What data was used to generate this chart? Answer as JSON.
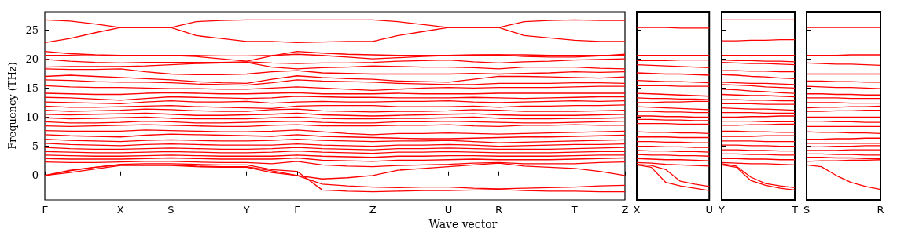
{
  "chart_data": [
    {
      "type": "line",
      "xlabel": "Wave vector",
      "ylabel": "Frequency (THz)",
      "color": "#ff0000",
      "line_style": "solid",
      "marker": "none",
      "categories": [
        "Γ",
        null,
        null,
        "X",
        null,
        "S",
        null,
        null,
        "Y",
        null,
        "Γ",
        null,
        null,
        "Z",
        null,
        null,
        "U",
        null,
        "R",
        null,
        null,
        "T",
        null,
        "Z"
      ],
      "ylim": [
        -4.2,
        28.1
      ],
      "yticks": [
        0,
        5,
        10,
        15,
        20,
        25
      ],
      "ref_lines": [
        {
          "axis": "y",
          "value": 0,
          "color": "#8080ff",
          "line_style": "dotted"
        }
      ],
      "series": [
        {
          "values": [
            26.7,
            26.5,
            26.0,
            25.4,
            25.4,
            25.4,
            26.4,
            26.6,
            26.7,
            26.7,
            26.7,
            26.7,
            26.7,
            26.7,
            26.4,
            25.9,
            25.4,
            25.4,
            25.4,
            26.4,
            26.6,
            26.7,
            26.6,
            26.6
          ]
        },
        {
          "values": [
            22.8,
            23.5,
            24.5,
            25.4,
            25.4,
            25.4,
            24.0,
            23.5,
            23.0,
            23.0,
            22.8,
            22.9,
            23.0,
            23.0,
            24.0,
            24.7,
            25.4,
            25.4,
            25.4,
            24.0,
            23.6,
            23.2,
            23.0,
            23.0
          ]
        },
        {
          "values": [
            21.3,
            20.9,
            20.7,
            20.6,
            20.6,
            20.6,
            20.4,
            20.0,
            19.6,
            20.5,
            21.3,
            21.0,
            20.8,
            20.7,
            20.6,
            20.6,
            20.6,
            20.6,
            20.7,
            20.4,
            20.3,
            20.3,
            20.5,
            20.8
          ]
        },
        {
          "values": [
            20.6,
            20.6,
            20.5,
            20.5,
            20.5,
            20.6,
            20.6,
            20.5,
            20.5,
            20.6,
            20.8,
            20.6,
            20.3,
            20.0,
            20.2,
            20.4,
            20.6,
            20.7,
            20.7,
            20.7,
            20.6,
            20.6,
            20.6,
            20.6
          ]
        },
        {
          "values": [
            19.9,
            19.6,
            19.4,
            19.3,
            19.4,
            19.4,
            19.4,
            19.4,
            19.5,
            19.3,
            19.2,
            19.3,
            19.3,
            19.4,
            19.6,
            19.7,
            19.8,
            19.5,
            19.3,
            19.5,
            19.6,
            19.8,
            19.9,
            20.0
          ]
        },
        {
          "values": [
            18.6,
            18.7,
            18.7,
            18.7,
            18.8,
            19.0,
            19.2,
            19.3,
            19.4,
            18.6,
            18.3,
            18.5,
            18.6,
            18.8,
            18.7,
            18.6,
            18.6,
            18.5,
            18.3,
            18.6,
            18.6,
            18.6,
            18.4,
            18.3
          ]
        },
        {
          "values": [
            18.3,
            18.2,
            18.2,
            18.3,
            17.8,
            17.4,
            17.3,
            17.3,
            17.4,
            17.8,
            18.0,
            17.6,
            17.5,
            17.4,
            17.4,
            17.4,
            17.4,
            17.5,
            17.4,
            17.5,
            17.6,
            17.8,
            17.7,
            17.8
          ]
        },
        {
          "values": [
            17.0,
            17.2,
            17.0,
            16.8,
            16.6,
            16.4,
            16.1,
            15.9,
            15.8,
            16.5,
            17.1,
            16.8,
            16.6,
            16.5,
            16.2,
            16.1,
            16.0,
            16.5,
            17.0,
            17.0,
            16.9,
            16.8,
            16.7,
            16.9
          ]
        },
        {
          "values": [
            16.4,
            16.3,
            16.1,
            16.0,
            16.0,
            15.9,
            15.7,
            15.6,
            15.5,
            15.9,
            16.4,
            16.2,
            16.1,
            16.0,
            15.8,
            15.7,
            15.6,
            15.6,
            15.8,
            15.8,
            15.8,
            15.9,
            15.9,
            15.8
          ]
        },
        {
          "values": [
            15.4,
            15.2,
            15.1,
            15.1,
            15.0,
            14.9,
            14.9,
            14.8,
            14.8,
            15.0,
            15.2,
            15.0,
            14.8,
            14.6,
            14.8,
            15.0,
            15.1,
            15.0,
            15.1,
            15.1,
            15.1,
            15.2,
            15.3,
            15.3
          ]
        },
        {
          "values": [
            14.1,
            14.0,
            13.9,
            13.9,
            14.1,
            14.2,
            14.1,
            14.0,
            14.0,
            14.1,
            14.2,
            14.0,
            14.0,
            14.0,
            14.1,
            14.0,
            14.0,
            14.0,
            14.1,
            14.1,
            14.1,
            14.1,
            14.1,
            14.1
          ]
        },
        {
          "values": [
            13.4,
            13.3,
            13.1,
            12.9,
            13.2,
            13.5,
            13.4,
            13.3,
            13.2,
            13.3,
            13.6,
            13.5,
            13.4,
            13.4,
            13.3,
            13.3,
            13.3,
            13.4,
            13.3,
            13.2,
            13.3,
            13.4,
            13.5,
            13.5
          ]
        },
        {
          "values": [
            12.6,
            12.5,
            12.4,
            12.3,
            12.6,
            12.8,
            12.6,
            12.6,
            12.7,
            12.4,
            12.6,
            12.7,
            12.6,
            12.6,
            12.7,
            12.7,
            12.8,
            12.6,
            12.5,
            12.6,
            12.7,
            12.8,
            12.7,
            12.8
          ]
        },
        {
          "values": [
            11.9,
            11.7,
            11.7,
            11.8,
            11.9,
            12.0,
            11.8,
            11.7,
            11.6,
            11.5,
            11.9,
            12.0,
            12.0,
            12.0,
            11.8,
            11.8,
            11.8,
            11.9,
            11.7,
            11.9,
            11.9,
            12.0,
            12.0,
            12.1
          ]
        },
        {
          "values": [
            11.2,
            11.0,
            11.1,
            11.2,
            11.4,
            11.3,
            11.1,
            11.0,
            11.0,
            11.3,
            11.4,
            11.1,
            11.0,
            10.9,
            11.0,
            11.0,
            11.1,
            11.3,
            11.2,
            11.0,
            11.0,
            11.0,
            11.1,
            11.2
          ]
        },
        {
          "values": [
            10.5,
            10.4,
            10.5,
            10.6,
            10.7,
            10.5,
            10.3,
            10.3,
            10.4,
            10.5,
            10.7,
            10.4,
            10.3,
            10.2,
            10.3,
            10.4,
            10.5,
            10.6,
            10.4,
            10.3,
            10.3,
            10.3,
            10.4,
            10.5
          ]
        },
        {
          "values": [
            9.9,
            9.7,
            9.8,
            9.9,
            10.0,
            9.8,
            9.7,
            9.7,
            9.7,
            9.9,
            10.0,
            9.8,
            9.7,
            9.7,
            9.8,
            9.8,
            9.9,
            10.0,
            9.8,
            9.7,
            9.7,
            9.8,
            9.8,
            9.9
          ]
        },
        {
          "values": [
            9.2,
            9.0,
            9.0,
            9.1,
            9.3,
            9.2,
            9.0,
            9.0,
            9.1,
            9.2,
            9.3,
            9.1,
            9.0,
            9.0,
            9.2,
            9.2,
            9.3,
            9.2,
            9.1,
            9.0,
            9.0,
            9.1,
            9.2,
            9.3
          ]
        },
        {
          "values": [
            8.5,
            8.4,
            8.5,
            8.6,
            8.7,
            8.6,
            8.5,
            8.4,
            8.4,
            8.6,
            8.7,
            8.5,
            8.5,
            8.5,
            8.6,
            8.6,
            8.7,
            8.5,
            8.4,
            8.6,
            8.6,
            8.7,
            8.6,
            8.6
          ]
        },
        {
          "values": [
            7.7,
            7.6,
            7.6,
            7.6,
            7.8,
            7.7,
            7.6,
            7.5,
            7.5,
            7.6,
            7.8,
            7.5,
            7.2,
            7.0,
            7.2,
            7.2,
            7.3,
            7.2,
            7.1,
            7.2,
            7.3,
            7.4,
            7.5,
            7.6
          ]
        },
        {
          "values": [
            7.0,
            6.8,
            6.7,
            6.6,
            6.9,
            7.1,
            7.0,
            6.9,
            6.8,
            6.7,
            7.0,
            6.7,
            6.6,
            6.5,
            6.4,
            6.3,
            6.3,
            6.4,
            6.5,
            6.6,
            6.6,
            6.7,
            6.8,
            6.9
          ]
        },
        {
          "values": [
            6.2,
            6.0,
            5.9,
            5.8,
            6.0,
            6.1,
            6.0,
            5.9,
            5.9,
            6.0,
            6.2,
            6.0,
            5.9,
            5.8,
            5.9,
            5.9,
            6.0,
            5.8,
            5.6,
            5.7,
            5.8,
            5.9,
            6.0,
            6.1
          ]
        },
        {
          "values": [
            5.5,
            5.3,
            5.2,
            5.1,
            5.3,
            5.4,
            5.3,
            5.2,
            5.2,
            5.2,
            5.4,
            5.2,
            5.1,
            5.0,
            5.2,
            5.2,
            5.3,
            5.2,
            5.0,
            5.1,
            5.2,
            5.3,
            5.3,
            5.4
          ]
        },
        {
          "values": [
            4.8,
            4.6,
            4.5,
            4.5,
            4.6,
            4.7,
            4.6,
            4.5,
            4.5,
            4.6,
            4.8,
            4.6,
            4.5,
            4.4,
            4.6,
            4.6,
            4.7,
            4.6,
            4.5,
            4.5,
            4.5,
            4.6,
            4.7,
            4.8
          ]
        },
        {
          "values": [
            4.1,
            4.0,
            3.9,
            3.9,
            4.0,
            4.1,
            4.0,
            3.9,
            3.9,
            4.0,
            4.2,
            4.0,
            3.9,
            3.8,
            4.0,
            4.0,
            4.1,
            4.0,
            3.9,
            3.9,
            3.9,
            4.0,
            4.1,
            4.1
          ]
        },
        {
          "values": [
            3.5,
            3.4,
            3.3,
            3.3,
            3.4,
            3.5,
            3.4,
            3.3,
            3.3,
            3.3,
            3.5,
            3.3,
            3.2,
            3.1,
            3.3,
            3.3,
            3.4,
            3.4,
            3.3,
            3.3,
            3.3,
            3.4,
            3.5,
            3.5
          ]
        },
        {
          "values": [
            2.9,
            2.8,
            2.8,
            2.8,
            2.9,
            3.0,
            2.9,
            2.8,
            2.8,
            2.8,
            3.0,
            2.6,
            2.5,
            2.4,
            2.6,
            2.6,
            2.7,
            2.8,
            2.7,
            2.7,
            2.7,
            2.8,
            2.9,
            3.0
          ]
        },
        {
          "values": [
            2.3,
            2.2,
            2.2,
            2.3,
            2.4,
            2.4,
            2.3,
            2.2,
            2.2,
            2.0,
            2.4,
            1.8,
            1.6,
            1.5,
            1.7,
            1.8,
            1.9,
            2.1,
            2.2,
            2.0,
            2.0,
            2.0,
            2.2,
            2.3
          ]
        },
        {
          "values": [
            0,
            0.9,
            1.4,
            1.8,
            1.8,
            1.8,
            1.6,
            1.5,
            1.5,
            0.8,
            0,
            -0.6,
            -0.4,
            0,
            0.9,
            1.2,
            1.5,
            1.8,
            2.1,
            1.6,
            1.4,
            1.2,
            0.7,
            0
          ]
        },
        {
          "values": [
            0,
            0.5,
            1.1,
            1.7,
            1.7,
            1.7,
            1.5,
            1.4,
            1.4,
            0.5,
            0,
            -1.5,
            -1.8,
            -2.0,
            -2.1,
            -2.0,
            -2.0,
            -2.2,
            -2.3,
            -2.2,
            -2.1,
            -2.0,
            -1.8,
            -1.7
          ]
        },
        {
          "values": [
            0,
            0.8,
            1.4,
            1.9,
            2.0,
            2.0,
            1.9,
            1.8,
            1.8,
            1.0,
            0.7,
            -2.5,
            -2.7,
            -2.8,
            -2.7,
            -2.6,
            -2.6,
            -2.5,
            -2.4,
            -2.6,
            -2.7,
            -2.7,
            -2.8,
            -2.8
          ]
        }
      ]
    },
    {
      "type": "line",
      "color": "#ff0000",
      "line_style": "solid",
      "marker": "none",
      "tick_labels": "x",
      "categories": [
        "X",
        null,
        null,
        null,
        null,
        "U"
      ],
      "ylim": [
        -4.2,
        28.1
      ],
      "yticks": [
        0,
        5,
        10,
        15,
        20,
        25
      ],
      "ref_lines": [
        {
          "axis": "y",
          "value": 0,
          "color": "#8080ff",
          "line_style": "dotted"
        }
      ],
      "series": [
        {
          "values": [
            25.4,
            25.4,
            25.4,
            25.3,
            25.3,
            25.3
          ]
        },
        {
          "values": [
            20.6,
            20.6,
            20.6,
            20.6,
            20.6,
            20.6
          ]
        },
        {
          "values": [
            19.7,
            19.7,
            19.7,
            19.8,
            19.8,
            19.8
          ]
        },
        {
          "values": [
            19.0,
            18.9,
            18.8,
            18.7,
            18.6,
            18.5
          ]
        },
        {
          "values": [
            17.6,
            17.5,
            17.4,
            17.4,
            17.3,
            17.2
          ]
        },
        {
          "values": [
            16.3,
            16.2,
            16.1,
            16.1,
            16.0,
            15.9
          ]
        },
        {
          "values": [
            15.4,
            15.4,
            15.4,
            15.3,
            15.3,
            15.3
          ]
        },
        {
          "values": [
            14.1,
            14.0,
            13.9,
            13.8,
            13.7,
            13.6
          ]
        },
        {
          "values": [
            13.3,
            13.2,
            13.2,
            13.1,
            13.1,
            13.0
          ]
        },
        {
          "values": [
            12.5,
            12.5,
            12.6,
            12.6,
            12.7,
            12.7
          ]
        },
        {
          "values": [
            11.8,
            11.7,
            11.6,
            11.5,
            11.4,
            11.3
          ]
        },
        {
          "values": [
            11.0,
            11.0,
            10.9,
            10.9,
            10.8,
            10.8
          ]
        },
        {
          "values": [
            10.2,
            10.2,
            10.1,
            10.1,
            10.0,
            10.0
          ]
        },
        {
          "values": [
            9.6,
            9.6,
            9.5,
            9.5,
            9.4,
            9.4
          ]
        },
        {
          "values": [
            8.9,
            8.9,
            8.9,
            8.8,
            8.8,
            8.8
          ]
        },
        {
          "values": [
            7.5,
            7.4,
            7.4,
            7.3,
            7.3,
            7.2
          ]
        },
        {
          "values": [
            6.6,
            6.6,
            6.6,
            6.5,
            6.5,
            6.5
          ]
        },
        {
          "values": [
            5.8,
            5.8,
            5.7,
            5.7,
            5.6,
            5.6
          ]
        },
        {
          "values": [
            5.0,
            5.0,
            4.9,
            4.9,
            4.8,
            4.8
          ]
        },
        {
          "values": [
            4.3,
            4.2,
            4.2,
            4.1,
            4.1,
            4.0
          ]
        },
        {
          "values": [
            3.6,
            3.5,
            3.5,
            3.4,
            3.4,
            3.3
          ]
        },
        {
          "values": [
            2.9,
            2.8,
            2.7,
            2.7,
            2.6,
            2.5
          ]
        },
        {
          "values": [
            2.2,
            2.1,
            1.9,
            1.8,
            1.7,
            1.6
          ]
        },
        {
          "values": [
            1.8,
            1.4,
            -1.2,
            -1.8,
            -2.2,
            -2.6
          ]
        },
        {
          "values": [
            1.9,
            1.7,
            1.0,
            -1.0,
            -1.5,
            -1.9
          ]
        }
      ]
    },
    {
      "type": "line",
      "color": "#ff0000",
      "line_style": "solid",
      "marker": "none",
      "tick_labels": "x",
      "categories": [
        "Y",
        null,
        null,
        null,
        null,
        "T"
      ],
      "ylim": [
        -4.2,
        28.1
      ],
      "yticks": [
        0,
        5,
        10,
        15,
        20,
        25
      ],
      "ref_lines": [
        {
          "axis": "y",
          "value": 0,
          "color": "#8080ff",
          "line_style": "dotted"
        }
      ],
      "series": [
        {
          "values": [
            26.7,
            26.7,
            26.7,
            26.7,
            26.7,
            26.7
          ]
        },
        {
          "values": [
            23.1,
            23.1,
            23.2,
            23.2,
            23.3,
            23.3
          ]
        },
        {
          "values": [
            20.6,
            20.6,
            20.6,
            20.6,
            20.6,
            20.6
          ]
        },
        {
          "values": [
            19.8,
            19.7,
            19.7,
            19.6,
            19.6,
            19.5
          ]
        },
        {
          "values": [
            19.4,
            19.3,
            19.2,
            19.2,
            19.1,
            19.0
          ]
        },
        {
          "values": [
            18.0,
            18.0,
            17.9,
            17.9,
            17.8,
            17.8
          ]
        },
        {
          "values": [
            17.3,
            17.2,
            17.0,
            16.9,
            16.7,
            16.6
          ]
        },
        {
          "values": [
            16.0,
            15.9,
            15.8,
            15.8,
            15.7,
            15.6
          ]
        },
        {
          "values": [
            15.6,
            15.5,
            15.4,
            15.2,
            15.1,
            15.0
          ]
        },
        {
          "values": [
            14.8,
            14.7,
            14.5,
            14.4,
            14.2,
            14.1
          ]
        },
        {
          "values": [
            13.9,
            13.8,
            13.7,
            13.7,
            13.6,
            13.5
          ]
        },
        {
          "values": [
            13.0,
            13.0,
            12.9,
            12.9,
            12.8,
            12.8
          ]
        },
        {
          "values": [
            12.3,
            12.3,
            12.3,
            12.2,
            12.2,
            12.2
          ]
        },
        {
          "values": [
            11.6,
            11.5,
            11.4,
            11.4,
            11.3,
            11.2
          ]
        },
        {
          "values": [
            10.8,
            10.8,
            10.8,
            10.7,
            10.7,
            10.7
          ]
        },
        {
          "values": [
            10.0,
            10.0,
            10.1,
            10.1,
            10.2,
            10.2
          ]
        },
        {
          "values": [
            9.3,
            9.3,
            9.3,
            9.2,
            9.2,
            9.2
          ]
        },
        {
          "values": [
            8.6,
            8.6,
            8.7,
            8.7,
            8.8,
            8.8
          ]
        },
        {
          "values": [
            7.6,
            7.6,
            7.5,
            7.5,
            7.4,
            7.4
          ]
        },
        {
          "values": [
            6.7,
            6.7,
            6.7,
            6.8,
            6.8,
            6.8
          ]
        },
        {
          "values": [
            5.9,
            5.9,
            5.9,
            5.8,
            5.8,
            5.8
          ]
        },
        {
          "values": [
            5.2,
            5.2,
            5.1,
            5.1,
            5.0,
            5.0
          ]
        },
        {
          "values": [
            4.4,
            4.4,
            4.3,
            4.3,
            4.2,
            4.2
          ]
        },
        {
          "values": [
            3.7,
            3.7,
            3.6,
            3.6,
            3.5,
            3.5
          ]
        },
        {
          "values": [
            2.9,
            2.9,
            2.8,
            2.8,
            2.7,
            2.7
          ]
        },
        {
          "values": [
            2.2,
            2.1,
            2.0,
            2.0,
            1.9,
            1.8
          ]
        },
        {
          "values": [
            1.8,
            1.4,
            -0.9,
            -1.7,
            -2.2,
            -2.5
          ]
        },
        {
          "values": [
            2.0,
            1.6,
            -0.3,
            -1.4,
            -1.8,
            -2.1
          ]
        }
      ]
    },
    {
      "type": "line",
      "color": "#ff0000",
      "line_style": "solid",
      "marker": "none",
      "tick_labels": "x",
      "categories": [
        "S",
        null,
        null,
        null,
        null,
        "R"
      ],
      "ylim": [
        -4.2,
        28.1
      ],
      "yticks": [
        0,
        5,
        10,
        15,
        20,
        25
      ],
      "ref_lines": [
        {
          "axis": "y",
          "value": 0,
          "color": "#8080ff",
          "line_style": "dotted"
        }
      ],
      "series": [
        {
          "values": [
            25.4,
            25.4,
            25.4,
            25.4,
            25.4,
            25.4
          ]
        },
        {
          "values": [
            20.6,
            20.6,
            20.6,
            20.7,
            20.7,
            20.7
          ]
        },
        {
          "values": [
            19.3,
            19.2,
            19.1,
            19.1,
            19.0,
            18.9
          ]
        },
        {
          "values": [
            17.4,
            17.4,
            17.4,
            17.4,
            17.4,
            17.4
          ]
        },
        {
          "values": [
            16.2,
            16.2,
            16.1,
            16.1,
            16.0,
            16.0
          ]
        },
        {
          "values": [
            15.3,
            15.2,
            15.1,
            15.1,
            15.0,
            14.9
          ]
        },
        {
          "values": [
            14.0,
            14.0,
            13.9,
            13.9,
            13.8,
            13.8
          ]
        },
        {
          "values": [
            13.3,
            13.3,
            13.3,
            13.2,
            13.2,
            13.2
          ]
        },
        {
          "values": [
            12.5,
            12.5,
            12.5,
            12.4,
            12.4,
            12.4
          ]
        },
        {
          "values": [
            11.6,
            11.7,
            11.7,
            11.8,
            11.8,
            11.9
          ]
        },
        {
          "values": [
            11.0,
            11.0,
            11.1,
            11.1,
            11.2,
            11.2
          ]
        },
        {
          "values": [
            10.0,
            10.0,
            10.0,
            10.0,
            10.0,
            10.0
          ]
        },
        {
          "values": [
            9.3,
            9.3,
            9.2,
            9.2,
            9.1,
            9.1
          ]
        },
        {
          "values": [
            8.4,
            8.4,
            8.4,
            8.4,
            8.4,
            8.4
          ]
        },
        {
          "values": [
            7.5,
            7.4,
            7.4,
            7.3,
            7.3,
            7.2
          ]
        },
        {
          "values": [
            6.2,
            6.2,
            6.3,
            6.3,
            6.4,
            6.4
          ]
        },
        {
          "values": [
            5.5,
            5.5,
            5.5,
            5.5,
            5.5,
            5.5
          ]
        },
        {
          "values": [
            4.9,
            4.9,
            5.0,
            5.0,
            5.1,
            5.1
          ]
        },
        {
          "values": [
            4.3,
            4.3,
            4.3,
            4.4,
            4.4,
            4.4
          ]
        },
        {
          "values": [
            3.7,
            3.7,
            3.6,
            3.6,
            3.5,
            3.5
          ]
        },
        {
          "values": [
            3.1,
            3.1,
            3.0,
            3.0,
            2.9,
            2.9
          ]
        },
        {
          "values": [
            2.4,
            2.5,
            2.5,
            2.6,
            2.6,
            2.7
          ]
        },
        {
          "values": [
            1.8,
            1.5,
            0,
            -1.2,
            -1.9,
            -2.4
          ]
        }
      ]
    }
  ]
}
